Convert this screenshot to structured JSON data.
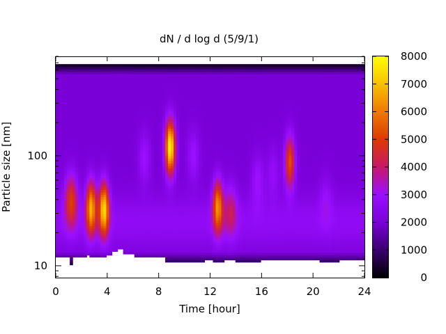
{
  "chart_data": {
    "type": "heatmap",
    "title": "dN / d log d (5/9/1)",
    "xlabel": "Time [hour]",
    "ylabel": "Particle size [nm]",
    "xlim": [
      0,
      24
    ],
    "x_ticks": [
      0,
      4,
      8,
      12,
      16,
      20,
      24
    ],
    "y_scale": "log",
    "ylim": [
      7.8,
      800
    ],
    "y_ticks": [
      10,
      100
    ],
    "colorbar": {
      "range": [
        0,
        8000
      ],
      "ticks": [
        0,
        1000,
        2000,
        3000,
        4000,
        5000,
        6000,
        7000,
        8000
      ],
      "colors": [
        "#000000",
        "#3a0070",
        "#7a00d8",
        "#9a10ff",
        "#c8186a",
        "#dd3a00",
        "#ee7a00",
        "#f8c000",
        "#ffff00"
      ]
    },
    "data_extent": {
      "y_max": 680
    },
    "lower_cutoff": [
      {
        "x": 0.0,
        "d": 12.0
      },
      {
        "x": 1.1,
        "d": 10.2
      },
      {
        "x": 1.3,
        "d": 12.0
      },
      {
        "x": 2.3,
        "d": 12.5
      },
      {
        "x": 2.7,
        "d": 12.0
      },
      {
        "x": 3.9,
        "d": 12.5
      },
      {
        "x": 4.3,
        "d": 13.5
      },
      {
        "x": 4.9,
        "d": 14.2
      },
      {
        "x": 5.3,
        "d": 12.8
      },
      {
        "x": 6.0,
        "d": 12.0
      },
      {
        "x": 8.6,
        "d": 10.8
      },
      {
        "x": 11.5,
        "d": 11.3
      },
      {
        "x": 12.3,
        "d": 10.8
      },
      {
        "x": 13.1,
        "d": 11.3
      },
      {
        "x": 14.0,
        "d": 10.8
      },
      {
        "x": 16.0,
        "d": 11.3
      },
      {
        "x": 20.5,
        "d": 10.8
      },
      {
        "x": 22.0,
        "d": 11.3
      },
      {
        "x": 24.0,
        "d": 11.3
      }
    ],
    "background": {
      "base": 2000,
      "increase_low": 700,
      "low_edge_drop_below": 13.5,
      "high_edge_drop_above": 550
    },
    "features": [
      {
        "x": 1.2,
        "d": 40,
        "peak": 4700
      },
      {
        "x": 2.75,
        "d": 34,
        "peak": 6300
      },
      {
        "x": 3.75,
        "d": 33,
        "peak": 6900
      },
      {
        "x": 6.9,
        "d": 95,
        "peak": 3000
      },
      {
        "x": 8.9,
        "d": 120,
        "peak": 7900
      },
      {
        "x": 10.7,
        "d": 100,
        "peak": 3000
      },
      {
        "x": 12.6,
        "d": 35,
        "peak": 5900
      },
      {
        "x": 13.6,
        "d": 32,
        "peak": 3600
      },
      {
        "x": 15.7,
        "d": 60,
        "peak": 3000
      },
      {
        "x": 16.9,
        "d": 70,
        "peak": 2800
      },
      {
        "x": 18.2,
        "d": 88,
        "peak": 5300
      },
      {
        "x": 21.0,
        "d": 40,
        "peak": 2700
      }
    ]
  }
}
